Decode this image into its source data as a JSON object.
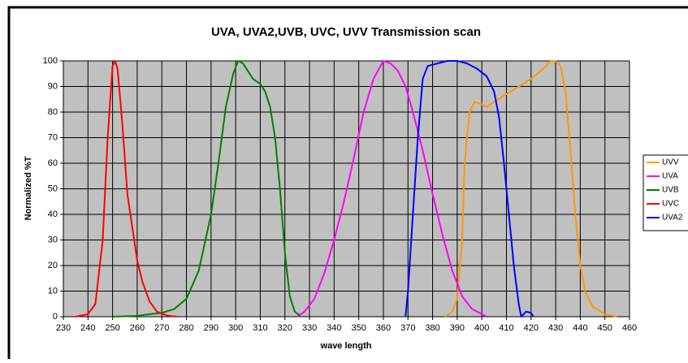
{
  "chart_data": {
    "type": "line",
    "title": "UVA, UVA2,UVB, UVC, UVV Transmission scan",
    "x_label": "wave length",
    "y_label": "Normalized %T",
    "xlim": [
      230,
      460
    ],
    "xticks": [
      230,
      240,
      250,
      260,
      270,
      280,
      290,
      300,
      310,
      320,
      330,
      340,
      350,
      360,
      370,
      380,
      390,
      400,
      410,
      420,
      430,
      440,
      450,
      460
    ],
    "ylim": [
      0,
      100
    ],
    "yticks": [
      0,
      10,
      20,
      30,
      40,
      50,
      60,
      70,
      80,
      90,
      100
    ],
    "grid": true,
    "legend": "right",
    "series": [
      {
        "name": "UVV",
        "color": "#ff9900",
        "x": [
          385,
          388,
          390,
          392,
          393,
          395,
          397,
          400,
          402,
          405,
          410,
          415,
          420,
          425,
          428,
          430,
          432,
          434,
          436,
          438,
          440,
          442,
          445,
          450,
          455
        ],
        "values": [
          0,
          2,
          7,
          30,
          60,
          80,
          84,
          83,
          82,
          84,
          87,
          90,
          93,
          97,
          100,
          100,
          98,
          88,
          65,
          40,
          20,
          10,
          4,
          1,
          0
        ]
      },
      {
        "name": "UVA",
        "color": "#ff00ff",
        "x": [
          325,
          328,
          332,
          336,
          340,
          344,
          348,
          352,
          356,
          360,
          363,
          366,
          369,
          372,
          376,
          380,
          384,
          388,
          392,
          396,
          400,
          402
        ],
        "values": [
          0,
          2,
          7,
          17,
          30,
          45,
          62,
          80,
          93,
          100,
          99,
          96,
          90,
          80,
          65,
          48,
          32,
          18,
          8,
          3,
          1,
          0
        ]
      },
      {
        "name": "UVB",
        "color": "#008000",
        "x": [
          250,
          260,
          265,
          270,
          275,
          280,
          285,
          290,
          293,
          296,
          299,
          301,
          303,
          305,
          307,
          310,
          312,
          314,
          316,
          318,
          320,
          322,
          324,
          326
        ],
        "values": [
          0,
          0.3,
          1,
          1.5,
          3,
          7,
          18,
          40,
          60,
          82,
          95,
          100,
          99,
          96,
          93,
          91,
          88,
          82,
          70,
          50,
          25,
          8,
          2,
          0.5
        ]
      },
      {
        "name": "UVC",
        "color": "#ff0000",
        "x": [
          235,
          240,
          243,
          246,
          248,
          250,
          251,
          252,
          254,
          256,
          258,
          260,
          262,
          265,
          268,
          272,
          276
        ],
        "values": [
          0,
          1,
          5,
          30,
          70,
          98,
          100,
          97,
          75,
          48,
          35,
          22,
          14,
          6,
          2,
          0.5,
          0
        ]
      },
      {
        "name": "UVA2",
        "color": "#0000ff",
        "x": [
          369,
          370,
          372,
          374,
          376,
          378,
          382,
          386,
          390,
          394,
          398,
          402,
          405,
          407,
          409,
          411,
          413,
          415,
          416,
          418,
          420,
          421
        ],
        "values": [
          0,
          10,
          40,
          70,
          93,
          98,
          99,
          100,
          100,
          99,
          97,
          94,
          88,
          78,
          60,
          40,
          20,
          5,
          0,
          2,
          1.5,
          0
        ]
      }
    ]
  }
}
